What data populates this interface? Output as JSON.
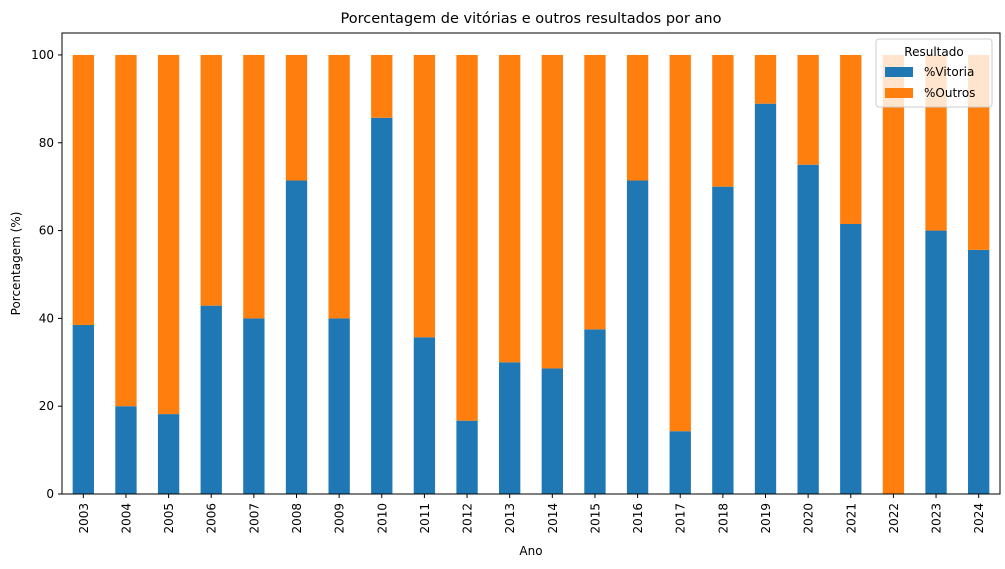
{
  "chart_data": {
    "type": "bar",
    "stacked": true,
    "title": "Porcentagem de vitórias e outros resultados por ano",
    "xlabel": "Ano",
    "ylabel": "Porcentagem (%)",
    "ylim": [
      0,
      105
    ],
    "yticks": [
      0,
      20,
      40,
      60,
      80,
      100
    ],
    "categories": [
      "2003",
      "2004",
      "2005",
      "2006",
      "2007",
      "2008",
      "2009",
      "2010",
      "2011",
      "2012",
      "2013",
      "2014",
      "2015",
      "2016",
      "2017",
      "2018",
      "2019",
      "2020",
      "2021",
      "2022",
      "2023",
      "2024"
    ],
    "series": [
      {
        "name": "%Vitoria",
        "color": "#1f77b4",
        "values": [
          38.5,
          20,
          18.2,
          42.9,
          40,
          71.4,
          40,
          85.7,
          35.7,
          16.7,
          30,
          28.6,
          37.5,
          71.4,
          14.3,
          70,
          88.9,
          75,
          61.5,
          0,
          60,
          55.6
        ]
      },
      {
        "name": "%Outros",
        "color": "#ff7f0e",
        "values": [
          61.5,
          80,
          81.8,
          57.1,
          60,
          28.6,
          60,
          14.3,
          64.3,
          83.3,
          70,
          71.4,
          62.5,
          28.6,
          85.7,
          30,
          11.1,
          25,
          38.5,
          100,
          40,
          44.4
        ]
      }
    ],
    "legend": {
      "title": "Resultado",
      "position": "top-right"
    },
    "grid": false
  }
}
